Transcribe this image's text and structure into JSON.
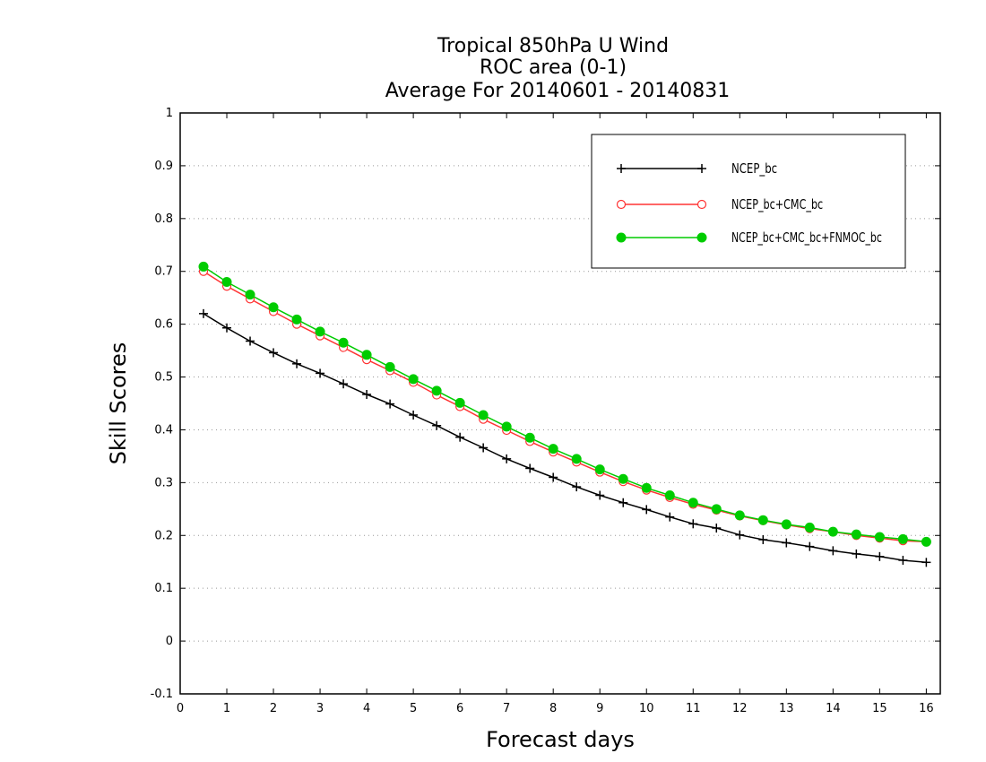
{
  "chart_data": {
    "type": "line",
    "title_lines": [
      "Tropical 850hPa U Wind",
      "ROC area (0-1)",
      "Average For 20140601 - 20140831"
    ],
    "xlabel": "Forecast days",
    "ylabel": "Skill Scores",
    "xlim": [
      0,
      16.3
    ],
    "ylim": [
      -0.1,
      1
    ],
    "x_ticks": [
      0,
      1,
      2,
      3,
      4,
      5,
      6,
      7,
      8,
      9,
      10,
      11,
      12,
      13,
      14,
      15,
      16
    ],
    "y_ticks": [
      -0.1,
      0,
      0.1,
      0.2,
      0.3,
      0.4,
      0.5,
      0.6,
      0.7,
      0.8,
      0.9,
      1
    ],
    "y_tick_labels": [
      "-0.1",
      "0",
      "0.1",
      "0.2",
      "0.3",
      "0.4",
      "0.5",
      "0.6",
      "0.7",
      "0.8",
      "0.9",
      "1"
    ],
    "grid": "horizontal-dotted",
    "legend_position": "top-right",
    "x": [
      0.5,
      1,
      1.5,
      2,
      2.5,
      3,
      3.5,
      4,
      4.5,
      5,
      5.5,
      6,
      6.5,
      7,
      7.5,
      8,
      8.5,
      9,
      9.5,
      10,
      10.5,
      11,
      11.5,
      12,
      12.5,
      13,
      13.5,
      14,
      14.5,
      15,
      15.5,
      16
    ],
    "series": [
      {
        "name": "NCEP_bc",
        "color": "#000000",
        "marker": "plus",
        "values": [
          0.62,
          0.593,
          0.568,
          0.546,
          0.525,
          0.507,
          0.487,
          0.467,
          0.449,
          0.428,
          0.408,
          0.386,
          0.366,
          0.345,
          0.327,
          0.31,
          0.292,
          0.276,
          0.262,
          0.249,
          0.235,
          0.222,
          0.214,
          0.201,
          0.192,
          0.186,
          0.179,
          0.171,
          0.165,
          0.16,
          0.153,
          0.149
        ]
      },
      {
        "name": "NCEP_bc+CMC_bc",
        "color": "#ff3333",
        "marker": "open-circle",
        "values": [
          0.7,
          0.672,
          0.648,
          0.624,
          0.6,
          0.578,
          0.556,
          0.533,
          0.512,
          0.49,
          0.466,
          0.444,
          0.42,
          0.399,
          0.378,
          0.358,
          0.339,
          0.32,
          0.302,
          0.286,
          0.272,
          0.259,
          0.248,
          0.237,
          0.228,
          0.22,
          0.213,
          0.207,
          0.2,
          0.195,
          0.19,
          0.188
        ]
      },
      {
        "name": "NCEP_bc+CMC_bc+FNMOC_bc",
        "color": "#00cc00",
        "marker": "filled-circle",
        "values": [
          0.709,
          0.68,
          0.656,
          0.632,
          0.609,
          0.586,
          0.565,
          0.542,
          0.519,
          0.496,
          0.474,
          0.451,
          0.428,
          0.406,
          0.385,
          0.364,
          0.345,
          0.325,
          0.307,
          0.29,
          0.276,
          0.262,
          0.25,
          0.238,
          0.229,
          0.221,
          0.215,
          0.207,
          0.202,
          0.197,
          0.193,
          0.188
        ]
      }
    ]
  }
}
